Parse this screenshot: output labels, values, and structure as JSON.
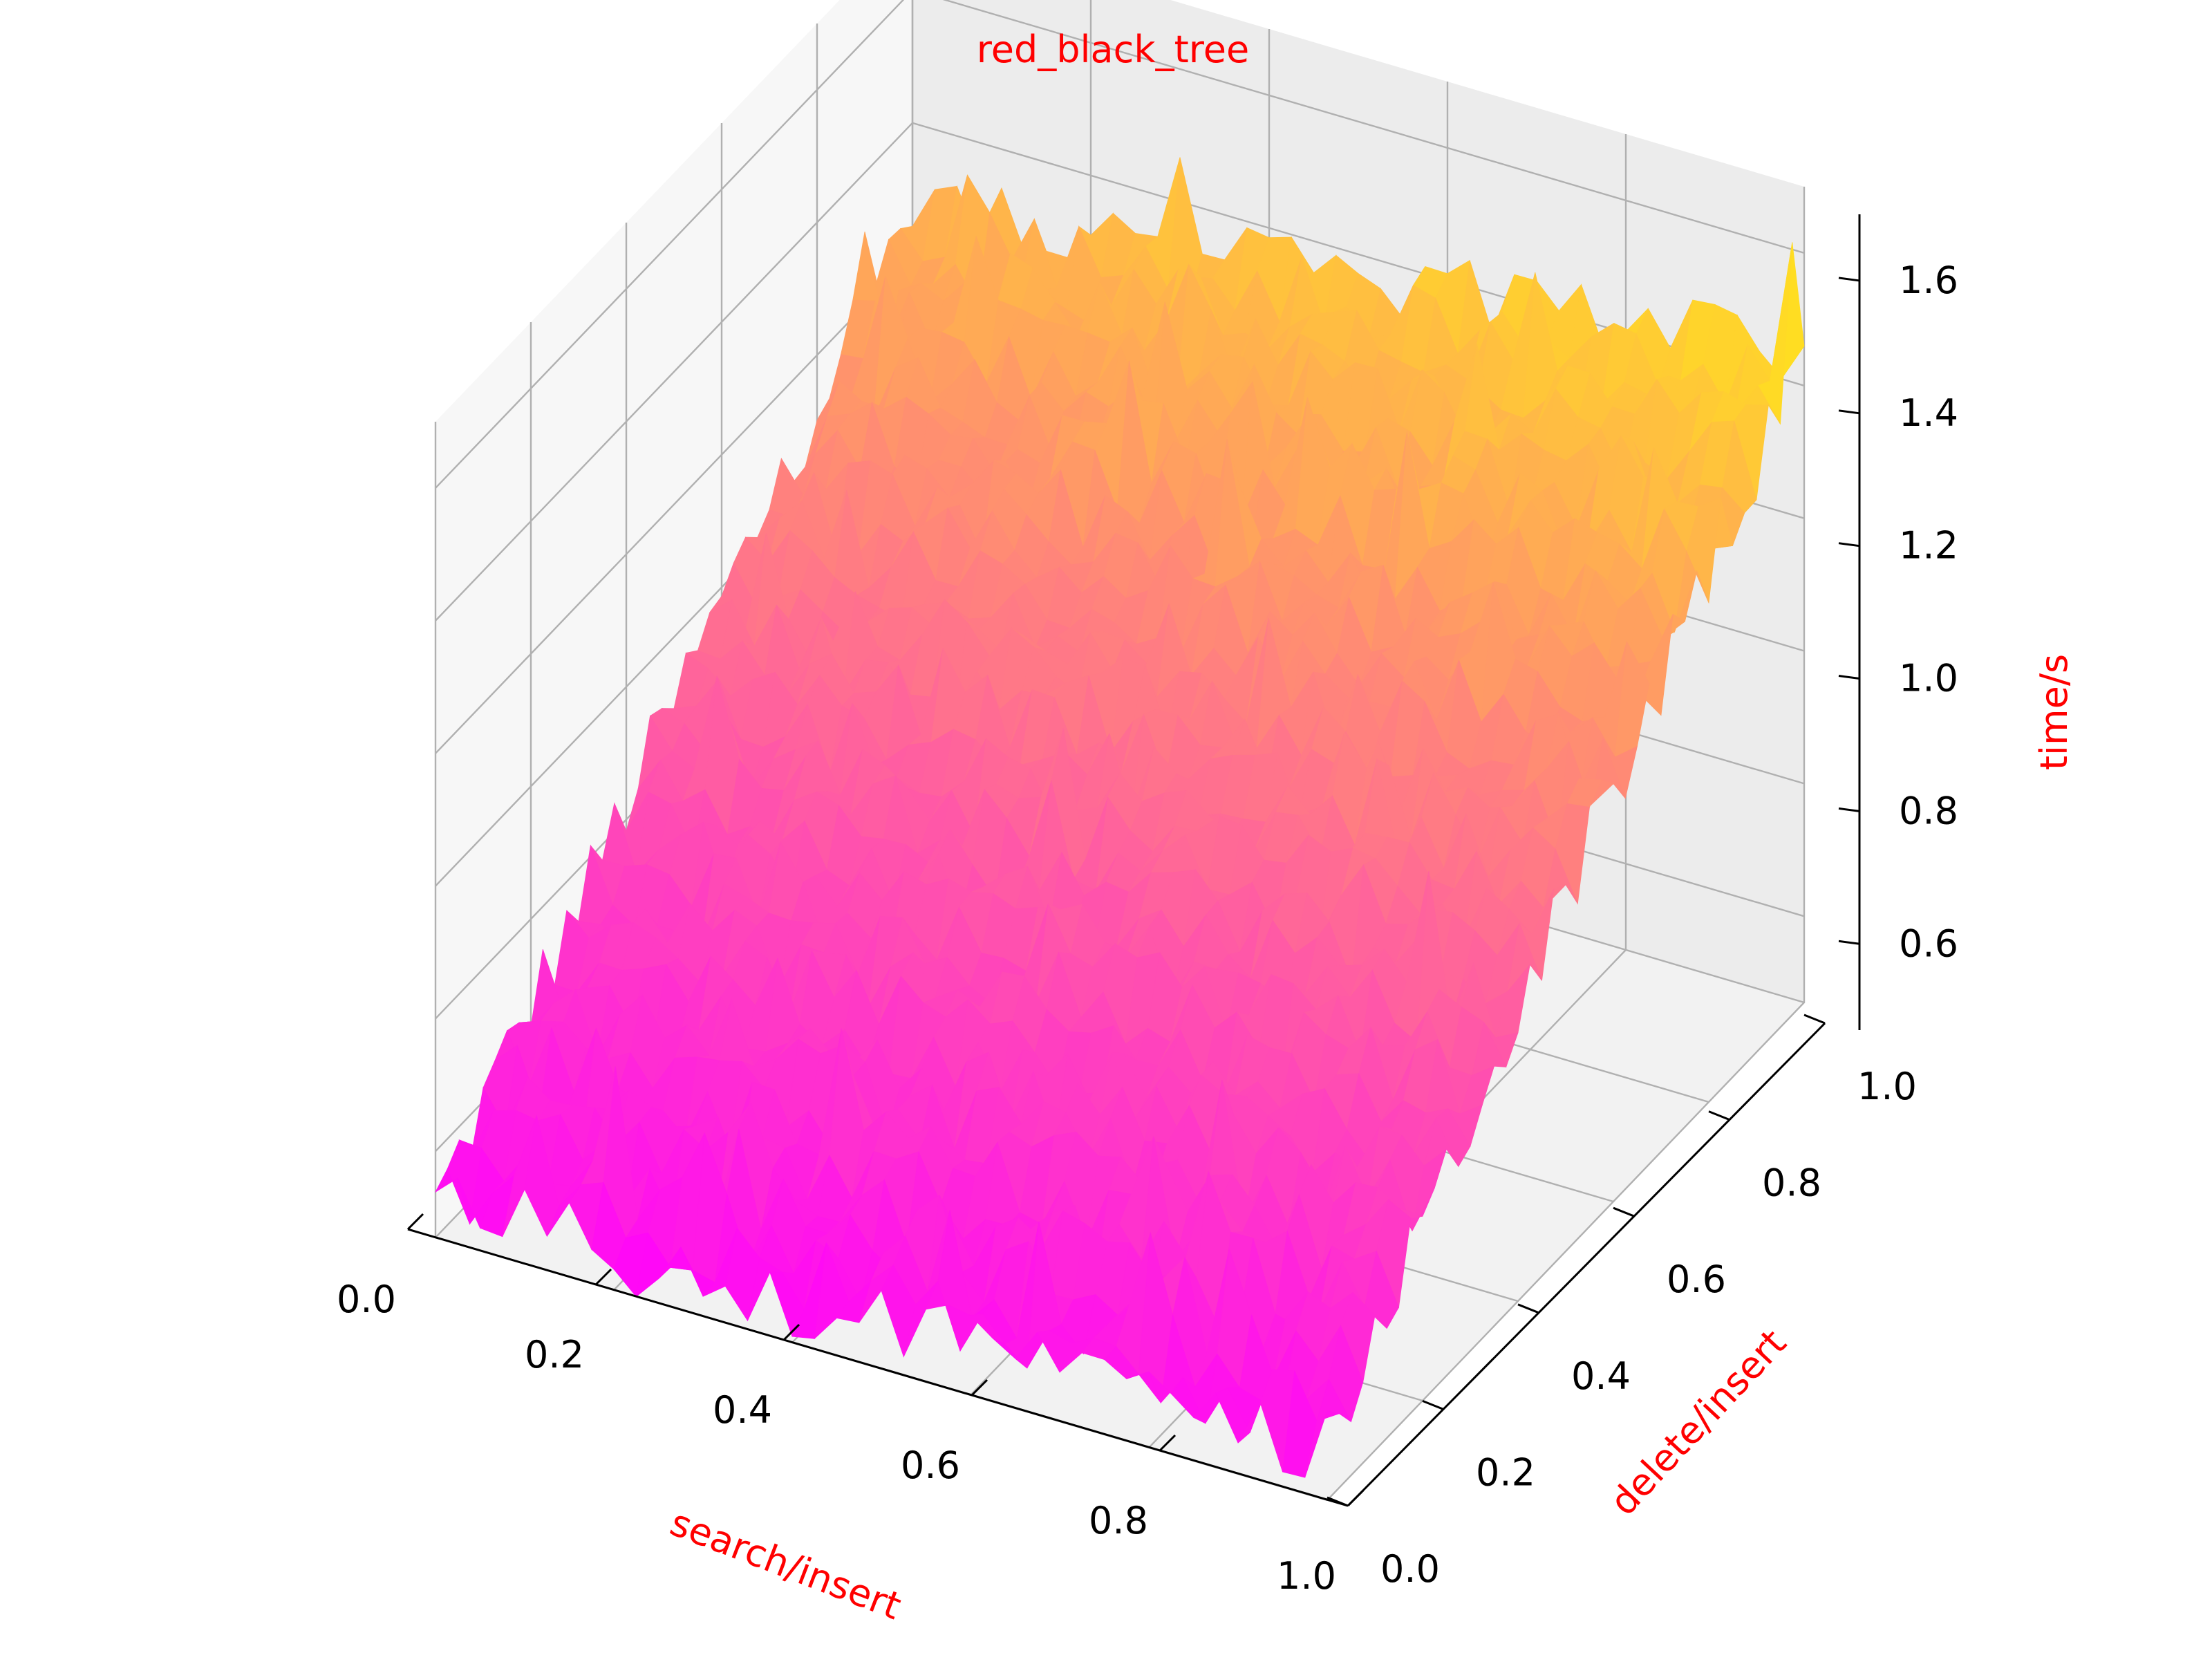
{
  "chart_data": {
    "type": "surface3d",
    "title": "red_black_tree",
    "xlabel": "search/insert",
    "ylabel": "delete/insert",
    "zlabel": "time/s",
    "label_color": "#ff0000",
    "colormap": "spring",
    "colormap_endpoints": [
      "#ff00ff",
      "#ffff00"
    ],
    "xlim": [
      0.0,
      1.0
    ],
    "ylim": [
      0.0,
      1.0
    ],
    "zlim": [
      0.47,
      1.7
    ],
    "xticks": [
      "0.0",
      "0.2",
      "0.4",
      "0.6",
      "0.8",
      "1.0"
    ],
    "yticks": [
      "0.0",
      "0.2",
      "0.4",
      "0.6",
      "0.8",
      "1.0"
    ],
    "zticks": [
      "0.6",
      "0.8",
      "1.0",
      "1.2",
      "1.4",
      "1.6"
    ],
    "xtick_values": [
      0.0,
      0.2,
      0.4,
      0.6,
      0.8,
      1.0
    ],
    "ytick_values": [
      0.0,
      0.2,
      0.4,
      0.6,
      0.8,
      1.0
    ],
    "ztick_values": [
      0.6,
      0.8,
      1.0,
      1.2,
      1.4,
      1.6
    ],
    "grid": true,
    "surface": {
      "description_model": "time rises roughly linearly with search/insert and delete/insert, with noise",
      "z_at_x0_y0": 0.52,
      "z_at_x1_y0": 0.55,
      "z_at_x0_y1": 1.28,
      "z_at_x1_y1": 1.45,
      "noise_amplitude": 0.06,
      "spike_amplitude": 0.15,
      "grid_resolution": 40
    }
  }
}
